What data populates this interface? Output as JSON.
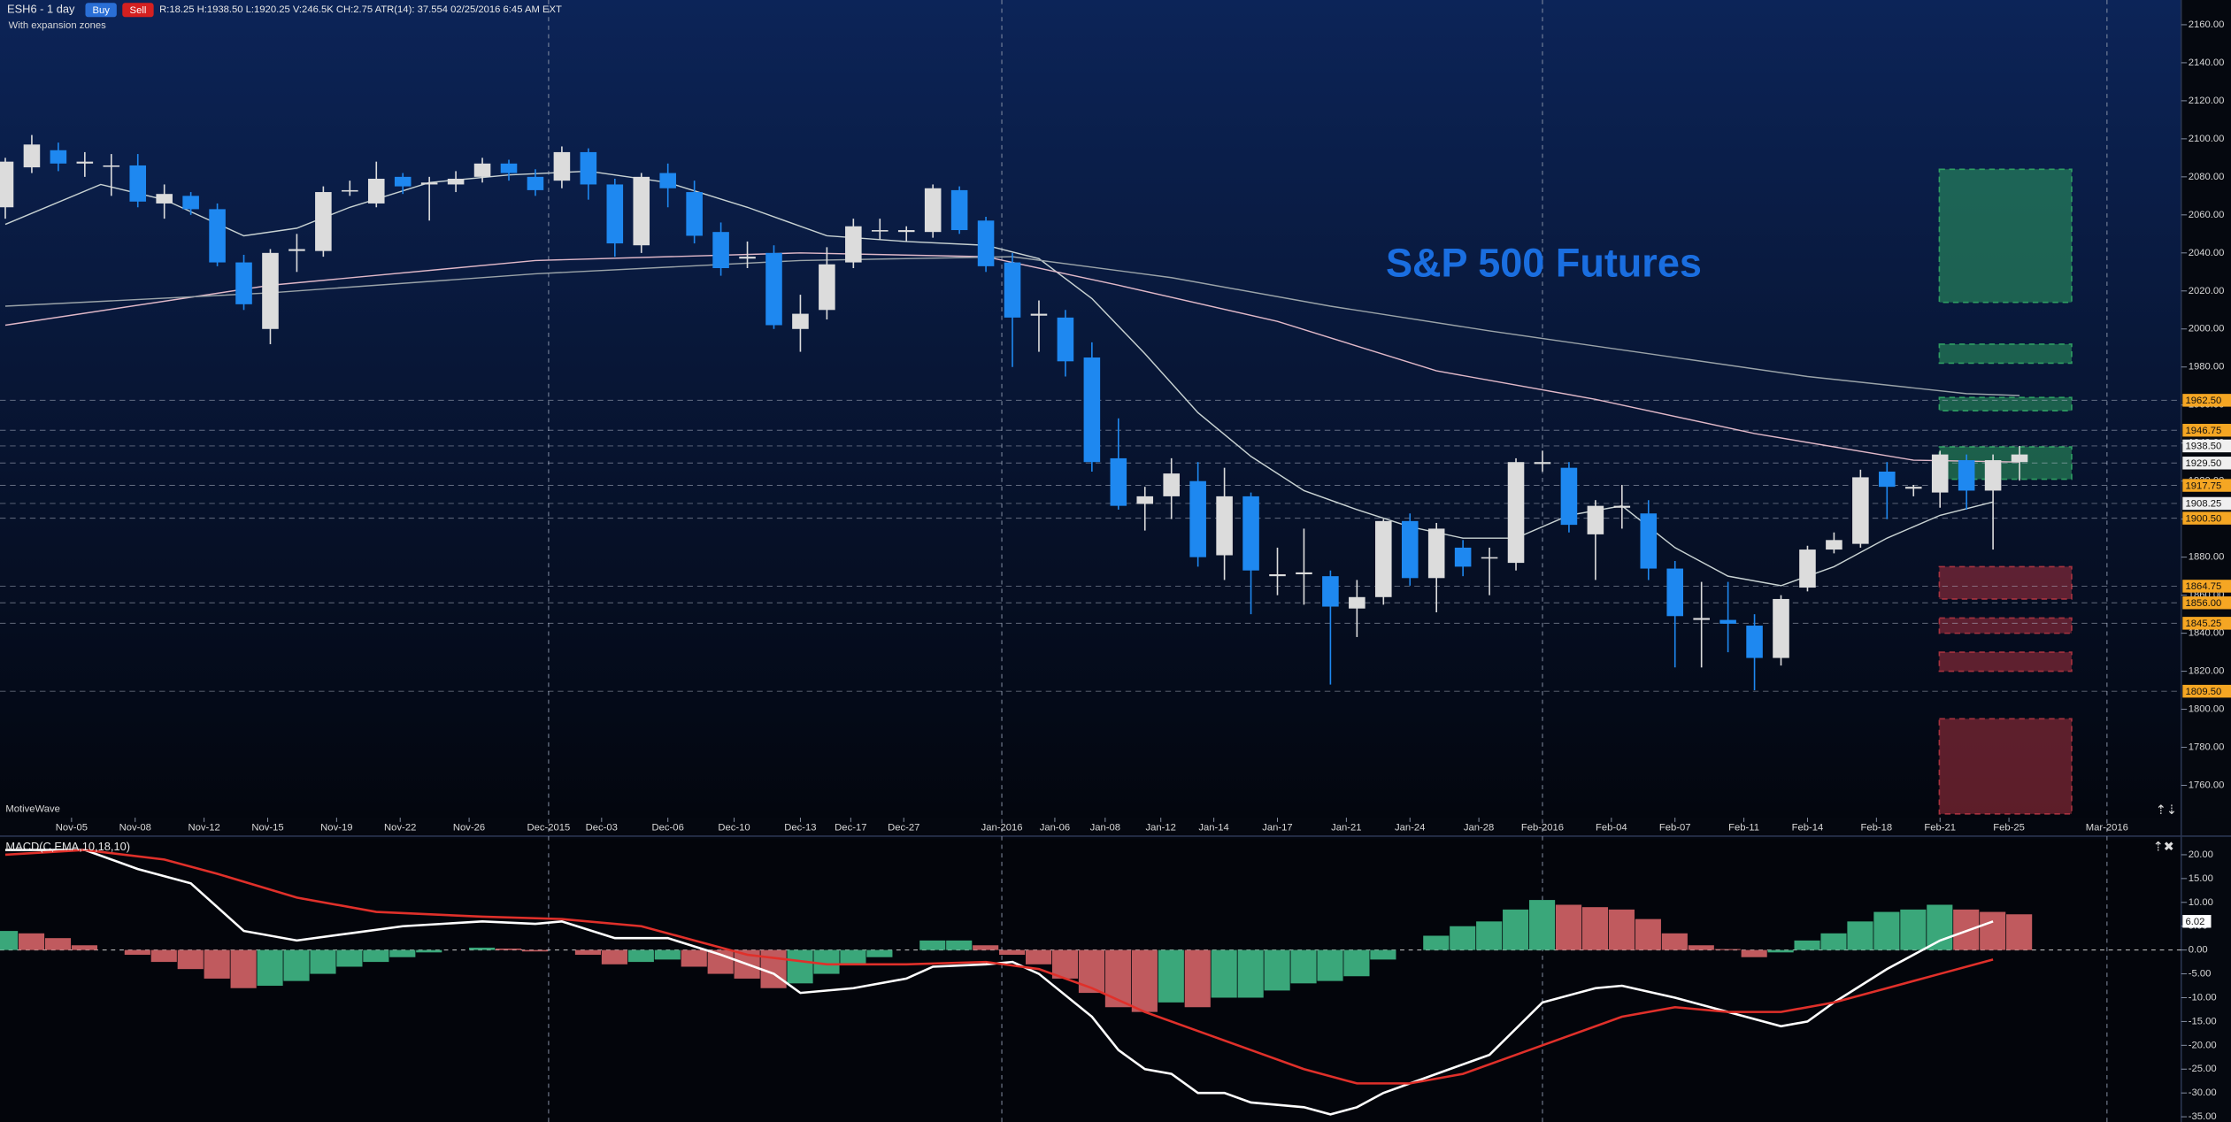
{
  "toolbar": {
    "symbol": "ESH6 - 1 day",
    "buy": "Buy",
    "sell": "Sell",
    "stats": "R:18.25  H:1938.50  L:1920.25  V:246.5K  CH:2.75  ATR(14): 37.554  02/25/2016 6:45 AM  EXT",
    "study": "With expansion zones",
    "brand": "MotiveWave"
  },
  "chart_data": [
    {
      "type": "candlestick",
      "annotation": "S&P 500 Futures",
      "up_color": "#dcdcdc",
      "down_color": "#1e88f0",
      "open": [
        2064,
        2085,
        2094,
        2087,
        2086,
        2086,
        2066,
        2070,
        2063,
        2035,
        2000,
        2041,
        2041,
        2073,
        2066,
        2080,
        2076,
        2076,
        2080,
        2087,
        2080,
        2078,
        2093,
        2076,
        2044,
        2082,
        2072,
        2051,
        2037,
        2040,
        2000,
        2010,
        2035,
        2052,
        2051,
        2051,
        2073,
        2057,
        2035,
        2007,
        2006,
        1985,
        1932,
        1908,
        1912,
        1920,
        1881,
        1912,
        1870,
        1871,
        1870,
        1853,
        1859,
        1899,
        1869,
        1885,
        1880,
        1877,
        1929,
        1927,
        1892,
        1906,
        1903,
        1874,
        1847,
        1847,
        1844,
        1827,
        1864,
        1884,
        1887,
        1925,
        1916,
        1914,
        1931,
        1915,
        1930
      ],
      "high": [
        2090,
        2102,
        2098,
        2093,
        2092,
        2092,
        2076,
        2072,
        2066,
        2039,
        2042,
        2050,
        2075,
        2078,
        2088,
        2082,
        2080,
        2083,
        2090,
        2089,
        2084,
        2096,
        2095,
        2079,
        2082,
        2087,
        2078,
        2056,
        2046,
        2044,
        2018,
        2043,
        2058,
        2058,
        2054,
        2076,
        2075,
        2059,
        2040,
        2015,
        2010,
        1993,
        1953,
        1917,
        1932,
        1930,
        1927,
        1914,
        1885,
        1895,
        1873,
        1868,
        1900,
        1903,
        1898,
        1889,
        1885,
        1932,
        1936,
        1930,
        1910,
        1918,
        1910,
        1878,
        1867,
        1867,
        1850,
        1860,
        1886,
        1893,
        1926,
        1930,
        1918,
        1936,
        1934,
        1934,
        1938.5
      ],
      "low": [
        2058,
        2082,
        2083,
        2080,
        2070,
        2064,
        2058,
        2060,
        2033,
        2010,
        1992,
        2030,
        2038,
        2070,
        2064,
        2071,
        2057,
        2072,
        2077,
        2078,
        2070,
        2074,
        2068,
        2038,
        2040,
        2064,
        2045,
        2028,
        2032,
        2000,
        1988,
        2005,
        2032,
        2047,
        2046,
        2048,
        2050,
        2030,
        1980,
        1988,
        1975,
        1925,
        1905,
        1894,
        1900,
        1875,
        1868,
        1850,
        1860,
        1855,
        1813,
        1838,
        1855,
        1865,
        1851,
        1870,
        1860,
        1873,
        1925,
        1893,
        1868,
        1895,
        1868,
        1822,
        1822,
        1830,
        1810,
        1823,
        1862,
        1882,
        1885,
        1900,
        1912,
        1906,
        1905,
        1884,
        1920.25
      ],
      "close": [
        2088,
        2097,
        2087,
        2088,
        2086,
        2067,
        2071,
        2063,
        2035,
        2013,
        2040,
        2042,
        2072,
        2073,
        2079,
        2075,
        2077,
        2079,
        2087,
        2082,
        2073,
        2093,
        2076,
        2045,
        2080,
        2074,
        2049,
        2032,
        2038,
        2002,
        2008,
        2034,
        2054,
        2052,
        2052,
        2074,
        2052,
        2033,
        2006,
        2008,
        1983,
        1930,
        1907,
        1912,
        1924,
        1880,
        1912,
        1873,
        1871,
        1872,
        1854,
        1859,
        1899,
        1869,
        1895,
        1875,
        1880,
        1930,
        1930,
        1897,
        1907,
        1907,
        1874,
        1849,
        1848,
        1845,
        1827,
        1858,
        1884,
        1889,
        1922,
        1917,
        1917,
        1934,
        1915,
        1931,
        1934
      ],
      "series": [
        {
          "color": "#c8d2d2",
          "x": [
            0,
            3.6,
            6,
            9,
            11,
            13,
            16,
            19,
            22,
            25,
            28,
            31,
            34,
            37,
            39,
            41,
            43,
            45,
            47,
            49,
            51,
            53,
            55,
            57,
            59,
            61,
            63,
            65,
            67,
            69,
            71,
            73,
            75
          ],
          "values": [
            2055,
            2076,
            2068,
            2049,
            2053,
            2064,
            2077,
            2081,
            2083,
            2077,
            2064,
            2049,
            2046,
            2044,
            2037,
            2016,
            1987,
            1956,
            1933,
            1915,
            1905,
            1896,
            1890,
            1890,
            1902,
            1907,
            1885,
            1870,
            1865,
            1875,
            1890,
            1902,
            1909
          ]
        },
        {
          "color": "#e0b8c8",
          "x": [
            0,
            10,
            20,
            30,
            37,
            42,
            48,
            54,
            60,
            66,
            72,
            76
          ],
          "values": [
            2002,
            2023,
            2036,
            2040,
            2038,
            2023,
            2004,
            1978,
            1963,
            1945,
            1931,
            1930
          ]
        },
        {
          "color": "#9aa3a8",
          "x": [
            0,
            10,
            20,
            30,
            38,
            44,
            50,
            56,
            62,
            68,
            74,
            76
          ],
          "values": [
            2012,
            2019,
            2029,
            2036,
            2038,
            2027,
            2012,
            1999,
            1987,
            1975,
            1966,
            1965
          ]
        }
      ],
      "levels": [
        {
          "color": "#f5a623",
          "values": [
            1962.5,
            1946.75,
            1917.75,
            1900.5,
            1864.75,
            1856,
            1845.25,
            1809.5
          ],
          "value_labels": [
            "1962.50",
            "1946.75",
            "1917.75",
            "1900.50",
            "1864.75",
            "1856.00",
            "1845.25",
            "1809.50"
          ]
        },
        {
          "color": "#f0f0f0",
          "values": [
            1938.5,
            1929.5,
            1908.25
          ],
          "value_labels": [
            "1938.50",
            "1929.50",
            "1908.25"
          ]
        }
      ],
      "zones": [
        {
          "range": [
            2014,
            2084
          ],
          "color": "#2e9e62"
        },
        {
          "range": [
            1982,
            1992
          ],
          "color": "#2e9e62"
        },
        {
          "range": [
            1957,
            1964
          ],
          "color": "#2e9e62"
        },
        {
          "range": [
            1921,
            1938
          ],
          "color": "#2e9e62"
        },
        {
          "range": [
            1858,
            1875
          ],
          "color": "#a8323f"
        },
        {
          "range": [
            1840,
            1848
          ],
          "color": "#a8323f"
        },
        {
          "range": [
            1820,
            1830
          ],
          "color": "#a8323f"
        },
        {
          "range": [
            1745,
            1795
          ],
          "color": "#a8323f"
        }
      ],
      "xlim": [
        -0.2,
        82.1
      ],
      "ylim": [
        1743,
        2173
      ],
      "yticks": [
        {
          "value": 1760,
          "label": "1760.00"
        },
        {
          "value": 1780,
          "label": "1780.00"
        },
        {
          "value": 1800,
          "label": "1800.00"
        },
        {
          "value": 1820,
          "label": "1820.00"
        },
        {
          "value": 1840,
          "label": "1840.00"
        },
        {
          "value": 1860,
          "label": "1860.00"
        },
        {
          "value": 1880,
          "label": "1880.00"
        },
        {
          "value": 1900,
          "label": "1900.00"
        },
        {
          "value": 1920,
          "label": "1920.00"
        },
        {
          "value": 1940,
          "label": "1940.00"
        },
        {
          "value": 1960,
          "label": "1960.00"
        },
        {
          "value": 1980,
          "label": "1980.00"
        },
        {
          "value": 2000,
          "label": "2000.00"
        },
        {
          "value": 2020,
          "label": "2020.00"
        },
        {
          "value": 2040,
          "label": "2040.00"
        },
        {
          "value": 2060,
          "label": "2060.00"
        },
        {
          "value": 2080,
          "label": "2080.00"
        },
        {
          "value": 2100,
          "label": "2100.00"
        },
        {
          "value": 2120,
          "label": "2120.00"
        },
        {
          "value": 2140,
          "label": "2140.00"
        },
        {
          "value": 2160,
          "label": "2160.00"
        }
      ],
      "xticks": [
        {
          "value": 2.5,
          "label": "Nov-05"
        },
        {
          "value": 4.9,
          "label": "Nov-08"
        },
        {
          "value": 7.5,
          "label": "Nov-12"
        },
        {
          "value": 9.9,
          "label": "Nov-15"
        },
        {
          "value": 12.5,
          "label": "Nov-19"
        },
        {
          "value": 14.9,
          "label": "Nov-22"
        },
        {
          "value": 17.5,
          "label": "Nov-26"
        },
        {
          "value": 22.5,
          "label": "Dec-03"
        },
        {
          "value": 25,
          "label": "Dec-06"
        },
        {
          "value": 27.5,
          "label": "Dec-10"
        },
        {
          "value": 30,
          "label": "Dec-13"
        },
        {
          "value": 31.9,
          "label": "Dec-17"
        },
        {
          "value": 33.9,
          "label": "Dec-27"
        },
        {
          "value": 39.6,
          "label": "Jan-06"
        },
        {
          "value": 41.5,
          "label": "Jan-08"
        },
        {
          "value": 43.6,
          "label": "Jan-12"
        },
        {
          "value": 45.6,
          "label": "Jan-14"
        },
        {
          "value": 48,
          "label": "Jan-17"
        },
        {
          "value": 50.6,
          "label": "Jan-21"
        },
        {
          "value": 53,
          "label": "Jan-24"
        },
        {
          "value": 55.6,
          "label": "Jan-28"
        },
        {
          "value": 60.6,
          "label": "Feb-04"
        },
        {
          "value": 63,
          "label": "Feb-07"
        },
        {
          "value": 65.6,
          "label": "Feb-11"
        },
        {
          "value": 68,
          "label": "Feb-14"
        },
        {
          "value": 70.6,
          "label": "Feb-18"
        },
        {
          "value": 73,
          "label": "Feb-21"
        },
        {
          "value": 75.6,
          "label": "Feb-25"
        }
      ],
      "month_ticks": [
        {
          "value": 20.5,
          "label": "Dec-2015"
        },
        {
          "value": 37.6,
          "label": "Jan-2016"
        },
        {
          "value": 58,
          "label": "Feb-2016"
        },
        {
          "value": 79.3,
          "label": "Mar-2016"
        }
      ]
    },
    {
      "type": "macd",
      "title": "MACD(C,EMA,10,18,10)",
      "up_color": "#3aa77a",
      "down_color": "#c05a5e",
      "histogram": [
        4,
        3.5,
        2.5,
        1,
        0,
        -1,
        -2.5,
        -4,
        -6,
        -8,
        -7.5,
        -6.5,
        -5,
        -3.5,
        -2.5,
        -1.5,
        -0.5,
        0,
        0.5,
        0.3,
        -0.3,
        0,
        -1,
        -3,
        -2.5,
        -2,
        -3.5,
        -5,
        -6,
        -8,
        -7,
        -5,
        -3,
        -1.5,
        0,
        2,
        2,
        1,
        -1,
        -3,
        -6,
        -9,
        -12,
        -13,
        -11,
        -12,
        -10,
        -10,
        -8.5,
        -7,
        -6.5,
        -5.5,
        -2,
        0,
        3,
        5,
        6,
        8.5,
        10.5,
        9.5,
        9,
        8.5,
        6.5,
        3.5,
        1,
        0.2,
        -1.5,
        -0.5,
        2,
        3.5,
        6,
        8,
        8.5,
        9.5,
        8.5,
        8,
        7.5
      ],
      "series": [
        {
          "color": "#ffffff",
          "x": [
            0,
            3,
            5,
            7,
            9,
            11,
            13,
            15,
            18,
            20,
            21,
            23,
            25,
            27,
            29,
            30,
            32,
            34,
            35,
            37,
            38,
            39,
            41,
            42,
            43,
            44,
            45,
            46,
            47,
            49,
            50,
            51,
            52,
            54,
            56,
            58,
            60,
            61,
            63,
            65,
            67,
            68,
            69,
            71,
            73,
            75
          ],
          "values": [
            21,
            21,
            17,
            14,
            4,
            2,
            3.5,
            5,
            6,
            5.5,
            6,
            2.5,
            2.5,
            -1,
            -5,
            -9,
            -8,
            -6,
            -3.5,
            -3,
            -2.5,
            -5,
            -14,
            -21,
            -25,
            -26,
            -30,
            -30,
            -32,
            -33,
            -34.5,
            -33,
            -30,
            -26,
            -22,
            -11,
            -8,
            -7.5,
            -10,
            -13,
            -16,
            -15,
            -11,
            -4,
            2,
            6
          ]
        },
        {
          "color": "#e0302a",
          "x": [
            0,
            3,
            6,
            8,
            11,
            14,
            18,
            21,
            24,
            26,
            28,
            31,
            34,
            37,
            39,
            41,
            43,
            45,
            47,
            49,
            51,
            53,
            55,
            57,
            59,
            61,
            63,
            65,
            67,
            69,
            71,
            73,
            75
          ],
          "values": [
            20,
            21,
            19,
            16,
            11,
            8,
            7,
            6.5,
            5,
            2,
            -1,
            -3,
            -3,
            -2.5,
            -4,
            -8,
            -13,
            -17,
            -21,
            -25,
            -28,
            -28,
            -26,
            -22,
            -18,
            -14,
            -12,
            -13,
            -13,
            -11,
            -8,
            -5,
            -2
          ]
        }
      ],
      "last_value": 6.02,
      "ylim": [
        -35.5,
        23.3
      ],
      "yticks": [
        {
          "value": 20,
          "label": "20.00"
        },
        {
          "value": 15,
          "label": "15.00"
        },
        {
          "value": 10,
          "label": "10.00"
        },
        {
          "value": 5,
          "label": "5.00"
        },
        {
          "value": 0,
          "label": "0.00"
        },
        {
          "value": -5,
          "label": "-5.00"
        },
        {
          "value": -10,
          "label": "-10.00"
        },
        {
          "value": -15,
          "label": "-15.00"
        },
        {
          "value": -20,
          "label": "-20.00"
        },
        {
          "value": -25,
          "label": "-25.00"
        },
        {
          "value": -30,
          "label": "-30.00"
        },
        {
          "value": -35,
          "label": "-35.00"
        }
      ]
    }
  ]
}
